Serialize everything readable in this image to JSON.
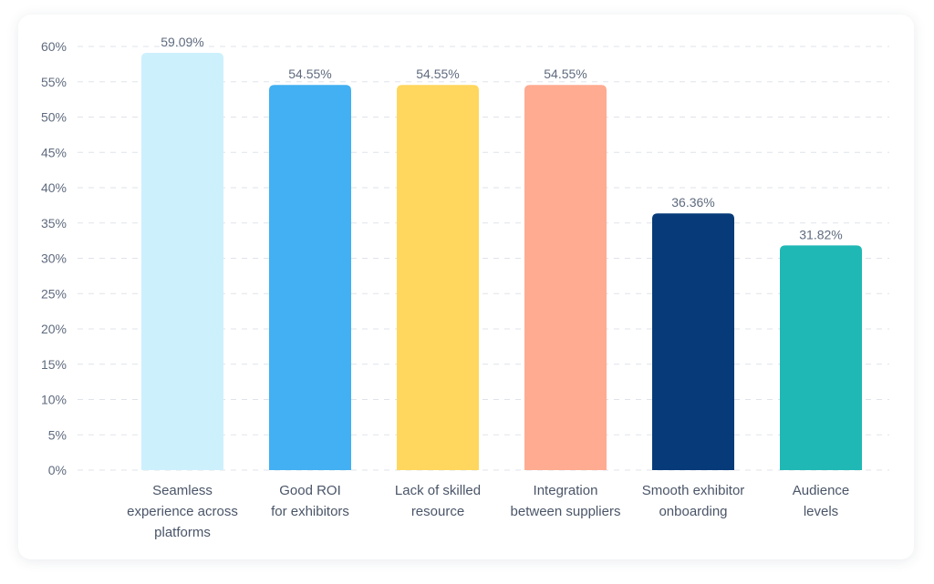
{
  "chart_data": {
    "type": "bar",
    "categories": [
      [
        "Seamless",
        "experience across",
        "platforms"
      ],
      [
        "Good ROI",
        "for exhibitors"
      ],
      [
        "Lack of skilled",
        "resource"
      ],
      [
        "Integration",
        "between suppliers"
      ],
      [
        "Smooth exhibitor",
        "onboarding"
      ],
      [
        "Audience",
        "levels"
      ]
    ],
    "values": [
      59.09,
      54.55,
      54.55,
      54.55,
      36.36,
      31.82
    ],
    "value_labels": [
      "59.09%",
      "54.55%",
      "54.55%",
      "54.55%",
      "36.36%",
      "31.82%"
    ],
    "colors": [
      "#cdf0fd",
      "#42b0f2",
      "#ffd75e",
      "#ffab91",
      "#073a78",
      "#1fb8b5"
    ],
    "yticks": [
      0,
      5,
      10,
      15,
      20,
      25,
      30,
      35,
      40,
      45,
      50,
      55,
      60
    ],
    "ytick_labels": [
      "0%",
      "5%",
      "10%",
      "15%",
      "20%",
      "25%",
      "30%",
      "35%",
      "40%",
      "45%",
      "50%",
      "55%",
      "60%"
    ],
    "ylim": [
      0,
      60
    ],
    "grid": true,
    "legend": "none",
    "title": "",
    "xlabel": "",
    "ylabel": ""
  }
}
